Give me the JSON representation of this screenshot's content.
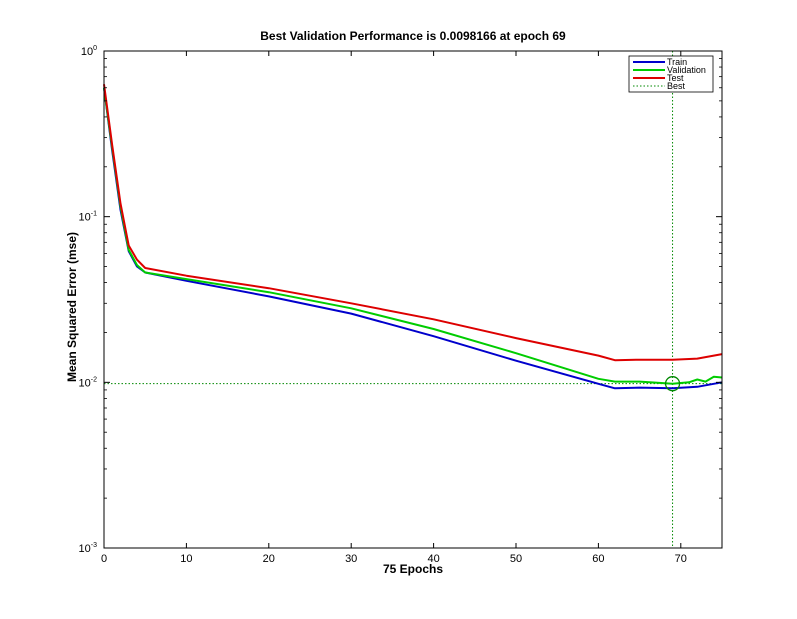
{
  "chart_data": {
    "type": "line",
    "title": "Best Validation Performance is 0.0098166 at epoch 69",
    "xlabel": "75 Epochs",
    "ylabel": "Mean Squared Error  (mse)",
    "xlim": [
      0,
      75
    ],
    "ylim": [
      0.001,
      1
    ],
    "yscale": "log",
    "xticks": [
      0,
      10,
      20,
      30,
      40,
      50,
      60,
      70
    ],
    "yticks": [
      {
        "value": 0.001,
        "base": "10",
        "exp": "-3"
      },
      {
        "value": 0.01,
        "base": "10",
        "exp": "-2"
      },
      {
        "value": 0.1,
        "base": "10",
        "exp": "-1"
      },
      {
        "value": 1,
        "base": "10",
        "exp": "0"
      }
    ],
    "grid": false,
    "legend_position": "top-right",
    "best": {
      "epoch": 69,
      "value": 0.0098166
    },
    "series": [
      {
        "name": "Train",
        "color": "#0000cc",
        "style": "solid",
        "points": [
          [
            0,
            0.6
          ],
          [
            1,
            0.25
          ],
          [
            2,
            0.11
          ],
          [
            3,
            0.062
          ],
          [
            4,
            0.05
          ],
          [
            5,
            0.046
          ],
          [
            10,
            0.041
          ],
          [
            20,
            0.033
          ],
          [
            30,
            0.026
          ],
          [
            40,
            0.019
          ],
          [
            50,
            0.0135
          ],
          [
            60,
            0.0098
          ],
          [
            62,
            0.0092
          ],
          [
            65,
            0.0093
          ],
          [
            69,
            0.0092
          ],
          [
            72,
            0.0094
          ],
          [
            75,
            0.01
          ]
        ]
      },
      {
        "name": "Validation",
        "color": "#00cc00",
        "style": "solid",
        "points": [
          [
            0,
            0.6
          ],
          [
            1,
            0.26
          ],
          [
            2,
            0.115
          ],
          [
            3,
            0.063
          ],
          [
            4,
            0.051
          ],
          [
            5,
            0.046
          ],
          [
            10,
            0.042
          ],
          [
            20,
            0.035
          ],
          [
            30,
            0.028
          ],
          [
            40,
            0.021
          ],
          [
            50,
            0.015
          ],
          [
            60,
            0.0105
          ],
          [
            62,
            0.0101
          ],
          [
            65,
            0.0101
          ],
          [
            69,
            0.0098166
          ],
          [
            71,
            0.01
          ],
          [
            72,
            0.0104
          ],
          [
            73,
            0.0101
          ],
          [
            74,
            0.0108
          ],
          [
            75,
            0.0107
          ]
        ]
      },
      {
        "name": "Test",
        "color": "#dd0000",
        "style": "solid",
        "points": [
          [
            0,
            0.63
          ],
          [
            1,
            0.27
          ],
          [
            2,
            0.12
          ],
          [
            3,
            0.067
          ],
          [
            4,
            0.055
          ],
          [
            5,
            0.049
          ],
          [
            10,
            0.044
          ],
          [
            20,
            0.037
          ],
          [
            30,
            0.03
          ],
          [
            40,
            0.024
          ],
          [
            50,
            0.0185
          ],
          [
            60,
            0.0145
          ],
          [
            62,
            0.0136
          ],
          [
            65,
            0.0137
          ],
          [
            69,
            0.0137
          ],
          [
            72,
            0.0139
          ],
          [
            75,
            0.0148
          ]
        ]
      },
      {
        "name": "Best",
        "color": "#008800",
        "style": "dotted",
        "points": []
      }
    ]
  }
}
